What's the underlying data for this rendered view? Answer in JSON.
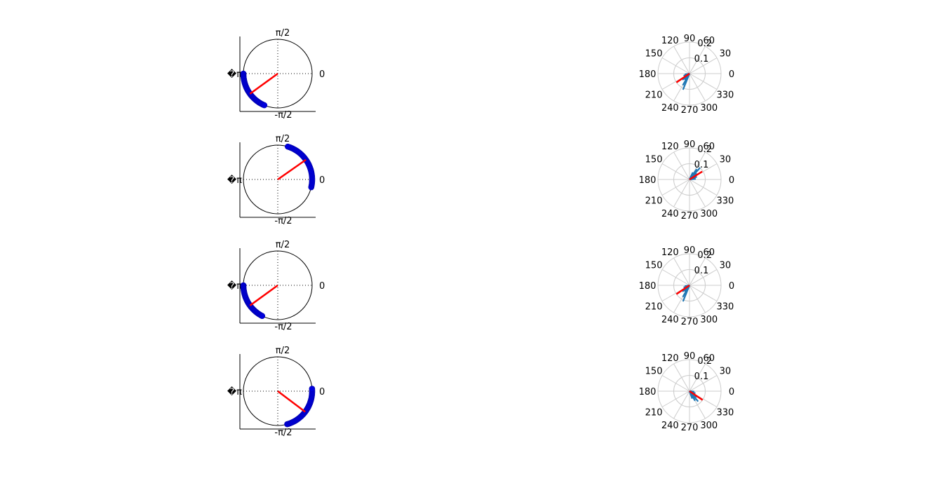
{
  "chart_data": [
    {
      "type": "scatter",
      "kind": "circular-phase-plot",
      "tick_labels": {
        "top": "π/2",
        "right": "0",
        "bottom": "-π/2",
        "left": "�π"
      },
      "arc_deg": [
        180,
        247
      ],
      "mean_vector": {
        "angle_deg": 216,
        "length": 1.0
      },
      "colors": {
        "points": "#0000dd",
        "mean": "#ff0000",
        "circle": "#000000"
      }
    },
    {
      "type": "polar",
      "kind": "polar-histogram",
      "angle_labels": [
        "0",
        "30",
        "60",
        "90",
        "120",
        "150",
        "180",
        "210",
        "240",
        "270",
        "300",
        "330"
      ],
      "radial_ticks": [
        "0.1",
        "0.2"
      ],
      "rlim": [
        0,
        0.2
      ],
      "bars": [
        {
          "angle_deg": 230,
          "value": 0.05
        },
        {
          "angle_deg": 240,
          "value": 0.085
        },
        {
          "angle_deg": 248,
          "value": 0.11
        },
        {
          "angle_deg": 222,
          "value": 0.06
        },
        {
          "angle_deg": 200,
          "value": 0.04
        },
        {
          "angle_deg": 190,
          "value": 0.03
        }
      ],
      "mean_vector": {
        "angle_deg": 214,
        "value": 0.1
      },
      "colors": {
        "bars": "#1f77b4",
        "mean": "#ff0000",
        "grid": "#cccccc"
      }
    },
    {
      "type": "scatter",
      "kind": "circular-phase-plot",
      "tick_labels": {
        "top": "π/2",
        "right": "0",
        "bottom": "-π/2",
        "left": "�π"
      },
      "arc_deg": [
        -13,
        73
      ],
      "mean_vector": {
        "angle_deg": 35,
        "length": 1.0
      },
      "colors": {
        "points": "#0000dd",
        "mean": "#ff0000",
        "circle": "#000000"
      }
    },
    {
      "type": "polar",
      "kind": "polar-histogram",
      "angle_labels": [
        "0",
        "30",
        "60",
        "90",
        "120",
        "150",
        "180",
        "210",
        "240",
        "270",
        "300",
        "330"
      ],
      "radial_ticks": [
        "0.1",
        "0.2"
      ],
      "rlim": [
        0,
        0.2
      ],
      "bars": [
        {
          "angle_deg": 55,
          "value": 0.08
        },
        {
          "angle_deg": 48,
          "value": 0.1
        },
        {
          "angle_deg": 40,
          "value": 0.06
        },
        {
          "angle_deg": 20,
          "value": 0.05
        },
        {
          "angle_deg": 5,
          "value": 0.04
        },
        {
          "angle_deg": 65,
          "value": 0.05
        }
      ],
      "mean_vector": {
        "angle_deg": 32,
        "value": 0.095
      },
      "colors": {
        "bars": "#1f77b4",
        "mean": "#ff0000",
        "grid": "#cccccc"
      }
    },
    {
      "type": "scatter",
      "kind": "circular-phase-plot",
      "tick_labels": {
        "top": "π/2",
        "right": "0",
        "bottom": "-π/2",
        "left": "�π"
      },
      "arc_deg": [
        180,
        243
      ],
      "mean_vector": {
        "angle_deg": 216,
        "length": 1.0
      },
      "colors": {
        "points": "#0000dd",
        "mean": "#ff0000",
        "circle": "#000000"
      }
    },
    {
      "type": "polar",
      "kind": "polar-histogram",
      "angle_labels": [
        "0",
        "30",
        "60",
        "90",
        "120",
        "150",
        "180",
        "210",
        "240",
        "270",
        "300",
        "330"
      ],
      "radial_ticks": [
        "0.1",
        "0.2"
      ],
      "rlim": [
        0,
        0.2
      ],
      "bars": [
        {
          "angle_deg": 230,
          "value": 0.05
        },
        {
          "angle_deg": 240,
          "value": 0.085
        },
        {
          "angle_deg": 248,
          "value": 0.11
        },
        {
          "angle_deg": 222,
          "value": 0.06
        },
        {
          "angle_deg": 200,
          "value": 0.04
        },
        {
          "angle_deg": 190,
          "value": 0.03
        }
      ],
      "mean_vector": {
        "angle_deg": 214,
        "value": 0.1
      },
      "colors": {
        "bars": "#1f77b4",
        "mean": "#ff0000",
        "grid": "#cccccc"
      }
    },
    {
      "type": "scatter",
      "kind": "circular-phase-plot",
      "tick_labels": {
        "top": "π/2",
        "right": "0",
        "bottom": "-π/2",
        "left": "�π"
      },
      "arc_deg": [
        -74,
        4
      ],
      "mean_vector": {
        "angle_deg": -37,
        "length": 1.0
      },
      "colors": {
        "points": "#0000dd",
        "mean": "#ff0000",
        "circle": "#000000"
      }
    },
    {
      "type": "polar",
      "kind": "polar-histogram",
      "angle_labels": [
        "0",
        "30",
        "60",
        "90",
        "120",
        "150",
        "180",
        "210",
        "240",
        "270",
        "300",
        "330"
      ],
      "radial_ticks": [
        "0.1",
        "0.2"
      ],
      "rlim": [
        0,
        0.2
      ],
      "bars": [
        {
          "angle_deg": 300,
          "value": 0.07
        },
        {
          "angle_deg": 310,
          "value": 0.085
        },
        {
          "angle_deg": 320,
          "value": 0.06
        },
        {
          "angle_deg": 340,
          "value": 0.04
        },
        {
          "angle_deg": 290,
          "value": 0.05
        },
        {
          "angle_deg": 355,
          "value": 0.03
        }
      ],
      "mean_vector": {
        "angle_deg": 326,
        "value": 0.1
      },
      "colors": {
        "bars": "#1f77b4",
        "mean": "#ff0000",
        "grid": "#cccccc"
      }
    }
  ]
}
